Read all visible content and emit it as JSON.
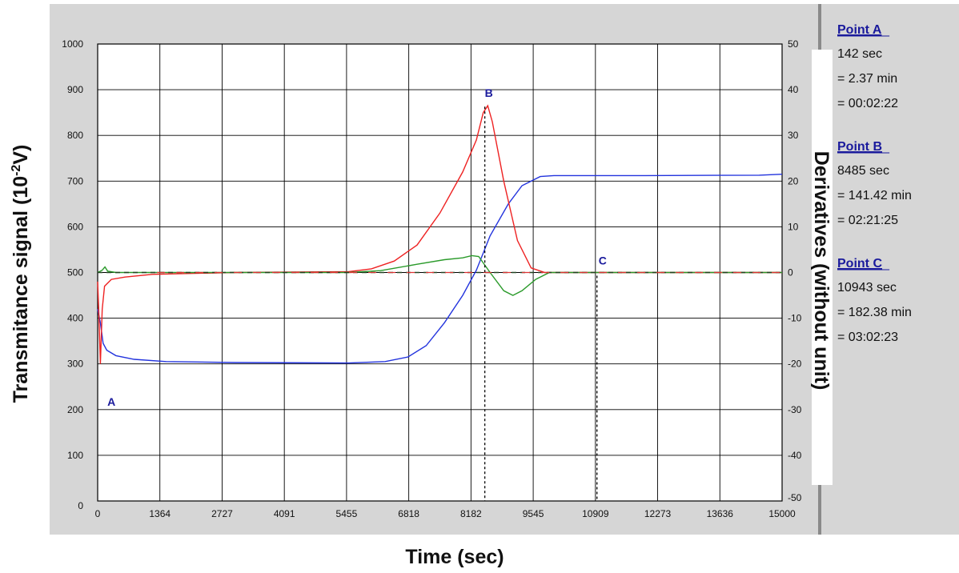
{
  "chart_data": {
    "type": "line",
    "xlabel": "Time (sec)",
    "ylabel": "Transmitance signal (10-2V)",
    "ylabel_main": "Transmitance signal (10",
    "ylabel_sup": "-2",
    "ylabel_end": "V)",
    "y2label": "Derivatives (without unit)",
    "xlim": [
      0,
      15000
    ],
    "ylim": [
      0,
      1000
    ],
    "y2lim": [
      -50,
      50
    ],
    "grid": true,
    "x_ticks": [
      "0",
      "1364",
      "2727",
      "4091",
      "5455",
      "6818",
      "8182",
      "9545",
      "10909",
      "12273",
      "13636",
      "15000"
    ],
    "y_ticks": [
      "0",
      "100",
      "200",
      "300",
      "400",
      "500",
      "600",
      "700",
      "800",
      "900",
      "1000"
    ],
    "y2_ticks": [
      "-50",
      "-40",
      "-30",
      "-20",
      "-10",
      "0",
      "10",
      "20",
      "30",
      "40",
      "50"
    ],
    "series": [
      {
        "color": "#2233dd",
        "axis": "left",
        "points": [
          [
            0,
            420
          ],
          [
            60,
            390
          ],
          [
            120,
            345
          ],
          [
            200,
            330
          ],
          [
            400,
            318
          ],
          [
            800,
            310
          ],
          [
            1500,
            305
          ],
          [
            3000,
            303
          ],
          [
            5500,
            302
          ],
          [
            6300,
            305
          ],
          [
            6800,
            315
          ],
          [
            7200,
            340
          ],
          [
            7600,
            390
          ],
          [
            8000,
            450
          ],
          [
            8300,
            505
          ],
          [
            8600,
            580
          ],
          [
            9000,
            650
          ],
          [
            9300,
            690
          ],
          [
            9700,
            710
          ],
          [
            10000,
            712
          ],
          [
            12000,
            712
          ],
          [
            14500,
            713
          ],
          [
            15000,
            715
          ]
        ]
      },
      {
        "color": "#ee2222",
        "axis": "right",
        "points": [
          [
            0,
            -2
          ],
          [
            30,
            -10
          ],
          [
            60,
            -20
          ],
          [
            100,
            -8
          ],
          [
            150,
            -3
          ],
          [
            300,
            -1.5
          ],
          [
            600,
            -1
          ],
          [
            1200,
            -0.4
          ],
          [
            3000,
            0
          ],
          [
            5500,
            0.2
          ],
          [
            6000,
            0.8
          ],
          [
            6500,
            2.5
          ],
          [
            7000,
            6
          ],
          [
            7500,
            13
          ],
          [
            8000,
            22
          ],
          [
            8300,
            29
          ],
          [
            8450,
            35
          ],
          [
            8550,
            36.5
          ],
          [
            8650,
            33
          ],
          [
            8900,
            20
          ],
          [
            9200,
            7
          ],
          [
            9500,
            1
          ],
          [
            9800,
            0
          ],
          [
            15000,
            0
          ]
        ]
      },
      {
        "color": "#2a9a2a",
        "axis": "right",
        "points": [
          [
            0,
            0
          ],
          [
            100,
            0.5
          ],
          [
            160,
            1.2
          ],
          [
            220,
            0.3
          ],
          [
            400,
            0
          ],
          [
            1500,
            0
          ],
          [
            5500,
            0
          ],
          [
            6200,
            0.4
          ],
          [
            7000,
            1.8
          ],
          [
            7600,
            2.8
          ],
          [
            8000,
            3.2
          ],
          [
            8200,
            3.7
          ],
          [
            8350,
            3.5
          ],
          [
            8600,
            0
          ],
          [
            8900,
            -4
          ],
          [
            9100,
            -5
          ],
          [
            9300,
            -4
          ],
          [
            9600,
            -1.5
          ],
          [
            9900,
            0
          ],
          [
            15000,
            0
          ]
        ]
      },
      {
        "color": "#224422",
        "axis": "right",
        "style": "dashed",
        "points": [
          [
            0,
            0
          ],
          [
            15000,
            0
          ]
        ]
      }
    ],
    "markers": [
      {
        "label": "A",
        "x": 142,
        "y": 350
      },
      {
        "label": "B",
        "x": 8485,
        "y": 870
      },
      {
        "label": "C",
        "x": 10943,
        "y": 500
      }
    ]
  },
  "points_panel": [
    {
      "title": "Point A",
      "lines": [
        "142 sec",
        "= 2.37 min",
        "= 00:02:22"
      ]
    },
    {
      "title": "Point B",
      "lines": [
        "8485 sec",
        "= 141.42 min",
        "= 02:21:25"
      ]
    },
    {
      "title": "Point C",
      "lines": [
        "10943 sec",
        "= 182.38 min",
        "= 03:02:23"
      ]
    }
  ]
}
